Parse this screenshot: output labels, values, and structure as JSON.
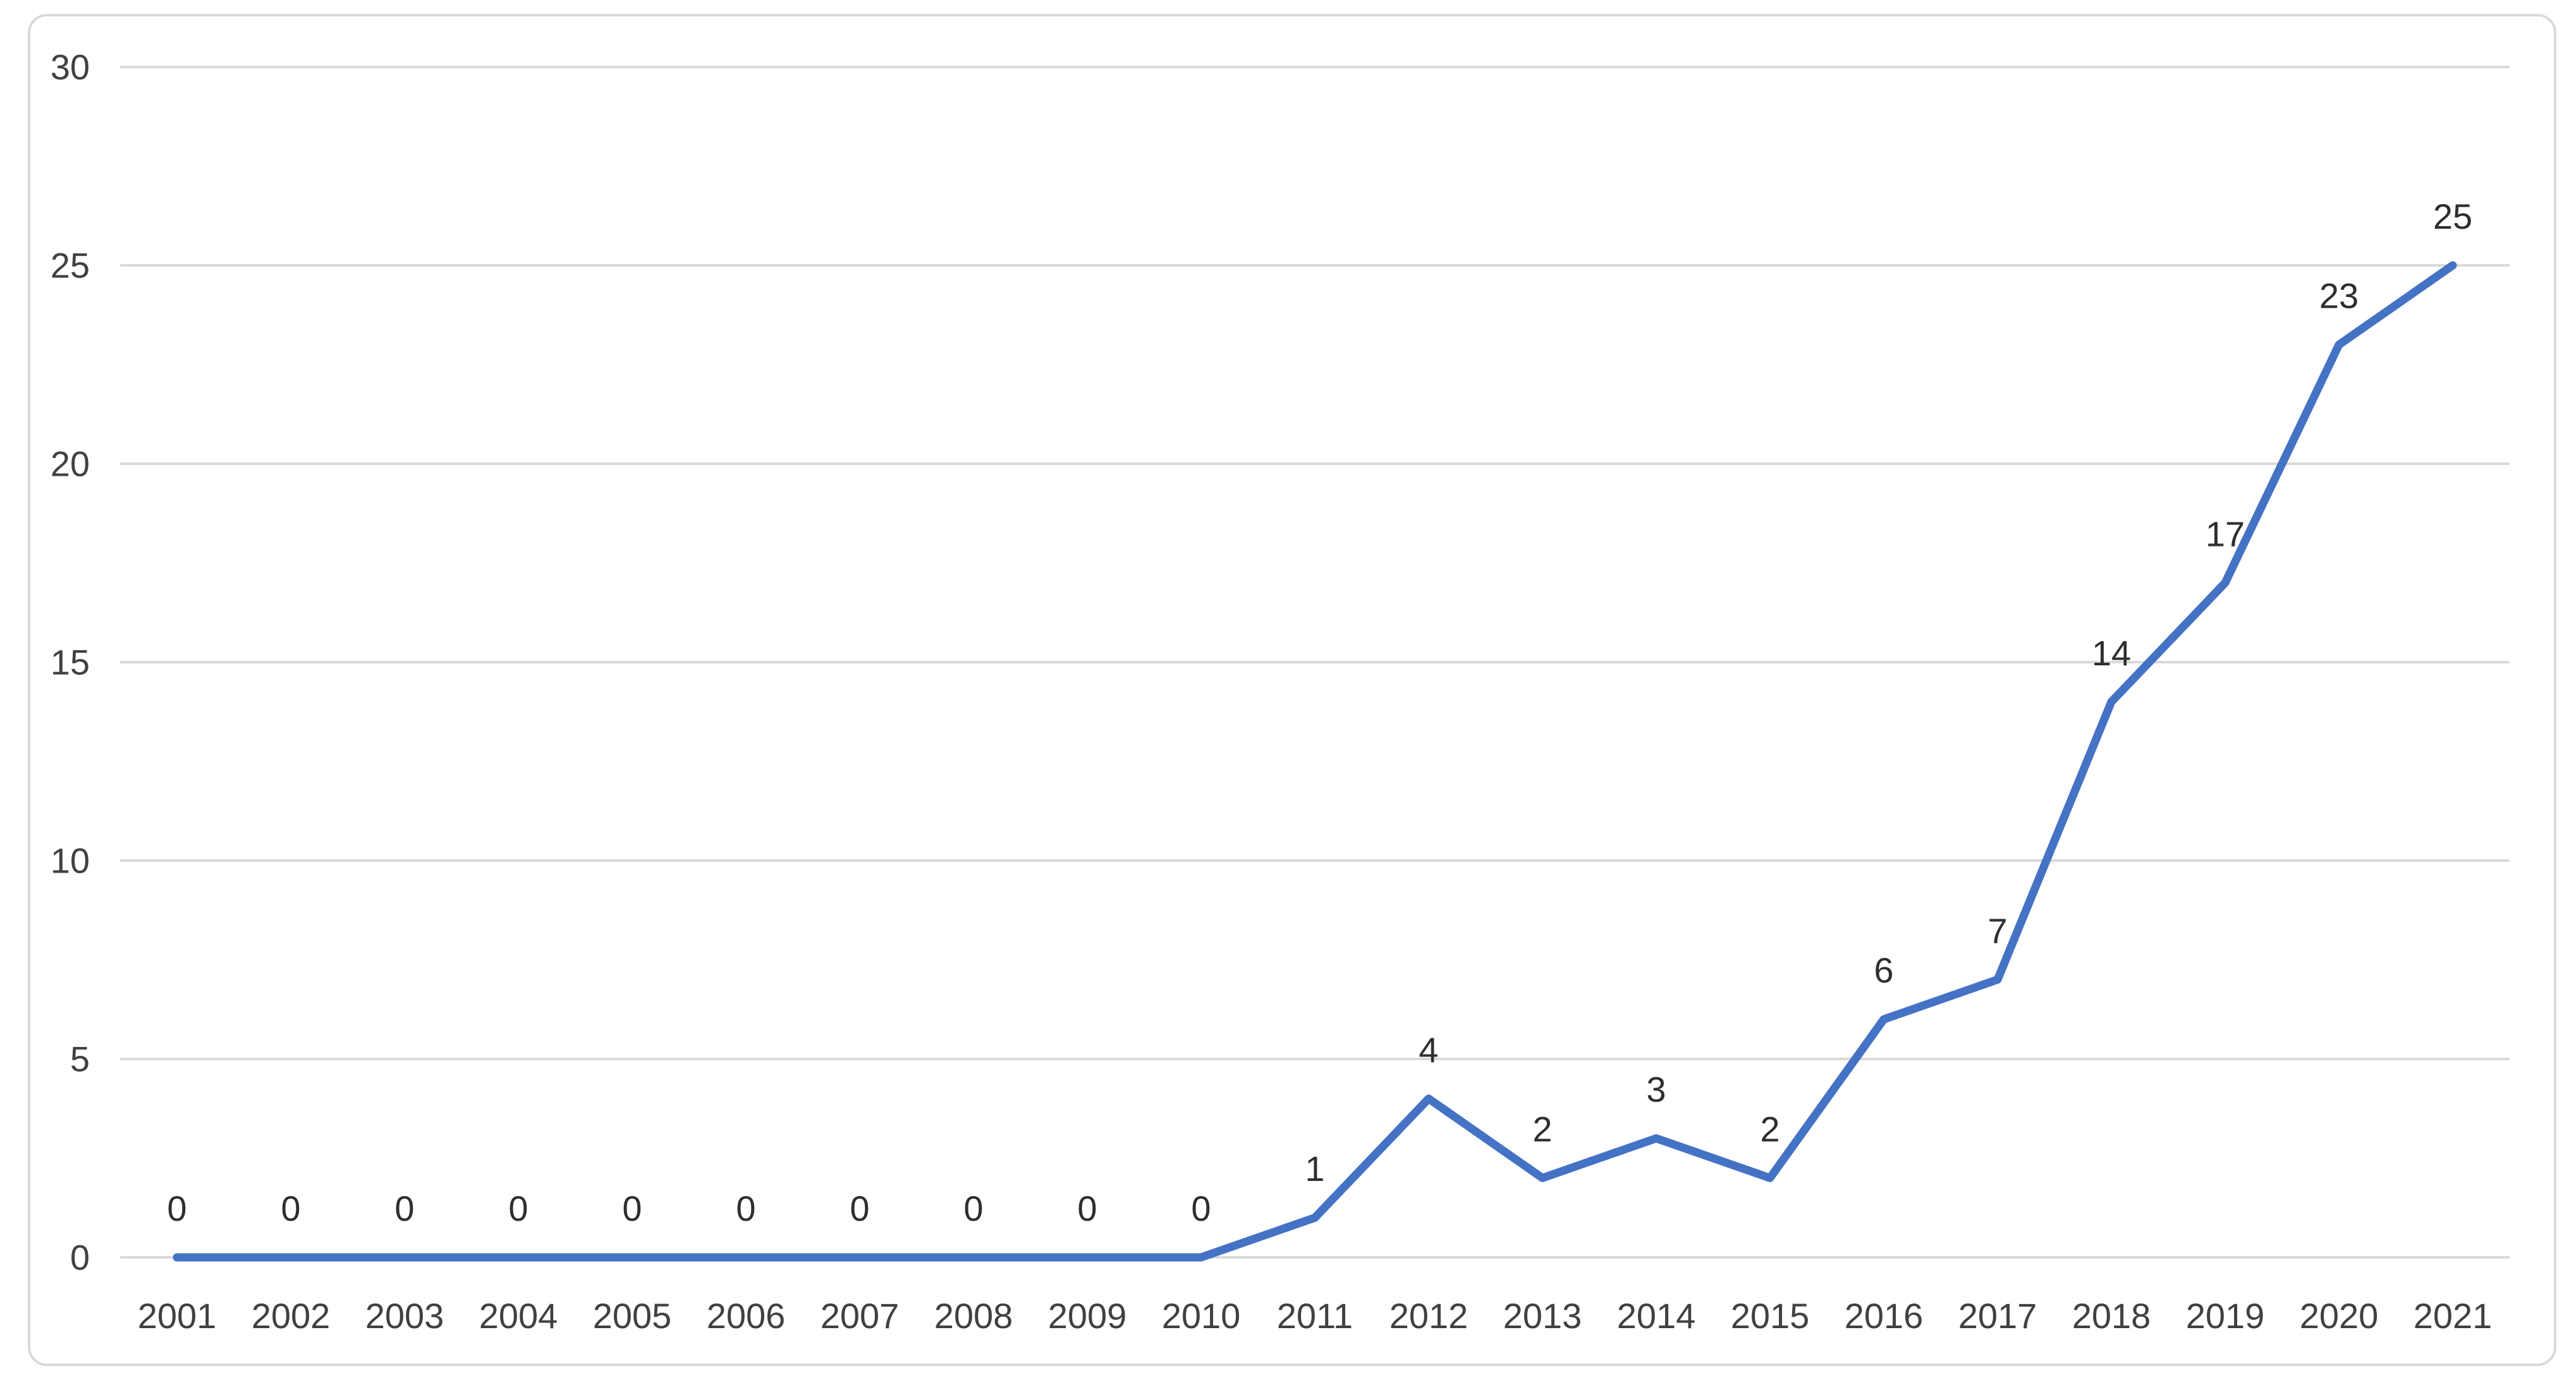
{
  "chart_data": {
    "type": "line",
    "title": "",
    "xlabel": "",
    "ylabel": "",
    "categories": [
      "2001",
      "2002",
      "2003",
      "2004",
      "2005",
      "2006",
      "2007",
      "2008",
      "2009",
      "2010",
      "2011",
      "2012",
      "2013",
      "2014",
      "2015",
      "2016",
      "2017",
      "2018",
      "2019",
      "2020",
      "2021"
    ],
    "series": [
      {
        "name": "",
        "values": [
          0,
          0,
          0,
          0,
          0,
          0,
          0,
          0,
          0,
          0,
          1,
          4,
          2,
          3,
          2,
          6,
          7,
          14,
          17,
          23,
          25
        ]
      }
    ],
    "data_labels": [
      "0",
      "0",
      "0",
      "0",
      "0",
      "0",
      "0",
      "0",
      "0",
      "0",
      "1",
      "4",
      "2",
      "3",
      "2",
      "6",
      "7",
      "14",
      "17",
      "23",
      "25"
    ],
    "ylim": [
      0,
      30
    ],
    "yticks": [
      0,
      5,
      10,
      15,
      20,
      25,
      30
    ],
    "ytick_labels": [
      "0",
      "5",
      "10",
      "15",
      "20",
      "25",
      "30"
    ],
    "grid": true,
    "legend": "none",
    "data_label_position": "above",
    "colors": {
      "series_line": "#4472C4",
      "gridline": "#D9D9D9",
      "chart_border": "#D9D9D9",
      "axis_tick_label": "#404040",
      "data_label": "#2E2E2E",
      "background": "#FFFFFF"
    }
  }
}
